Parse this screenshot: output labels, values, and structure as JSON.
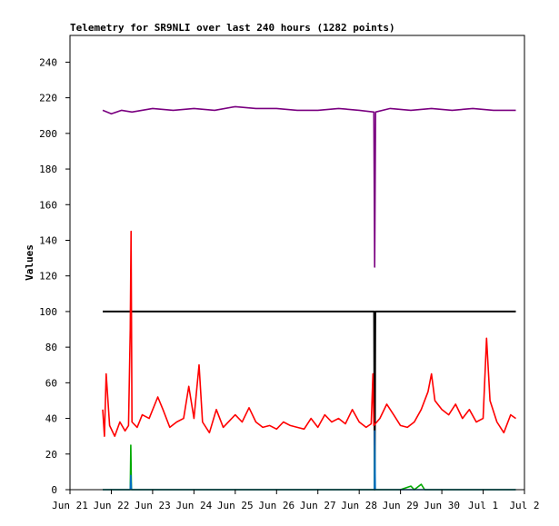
{
  "chart_data": {
    "type": "line",
    "title": "Telemetry for SR9NLI over last 240 hours (1282 points)",
    "xlabel": "",
    "ylabel": "Values",
    "xlim": [
      "2023-06-21",
      "2023-07-02"
    ],
    "ylim": [
      0,
      255
    ],
    "y_ticks": [
      0,
      20,
      40,
      60,
      80,
      100,
      120,
      140,
      160,
      180,
      200,
      220,
      240
    ],
    "x_ticks": [
      {
        "date": "2023-06-21",
        "label": "Jun 21"
      },
      {
        "date": "2023-06-22",
        "label": "Jun 22"
      },
      {
        "date": "2023-06-23",
        "label": "Jun 23"
      },
      {
        "date": "2023-06-24",
        "label": "Jun 24"
      },
      {
        "date": "2023-06-25",
        "label": "Jun 25"
      },
      {
        "date": "2023-06-26",
        "label": "Jun 26"
      },
      {
        "date": "2023-06-27",
        "label": "Jun 27"
      },
      {
        "date": "2023-06-28",
        "label": "Jun 28"
      },
      {
        "date": "2023-06-29",
        "label": "Jun 29"
      },
      {
        "date": "2023-06-30",
        "label": "Jun 30"
      },
      {
        "date": "2023-07-01",
        "label": "Jul 1"
      },
      {
        "date": "2023-07-02",
        "label": "Jul 2"
      }
    ],
    "grid": false,
    "legend": "none",
    "series": [
      {
        "color": "#7a0080",
        "points": [
          [
            "2023-06-21 19:00",
            213
          ],
          [
            "2023-06-22 00:00",
            211
          ],
          [
            "2023-06-22 06:00",
            213
          ],
          [
            "2023-06-22 12:00",
            212
          ],
          [
            "2023-06-23 00:00",
            214
          ],
          [
            "2023-06-23 12:00",
            213
          ],
          [
            "2023-06-24 00:00",
            214
          ],
          [
            "2023-06-24 12:00",
            213
          ],
          [
            "2023-06-25 00:00",
            215
          ],
          [
            "2023-06-25 12:00",
            214
          ],
          [
            "2023-06-26 00:00",
            214
          ],
          [
            "2023-06-26 12:00",
            213
          ],
          [
            "2023-06-27 00:00",
            213
          ],
          [
            "2023-06-27 12:00",
            214
          ],
          [
            "2023-06-28 00:00",
            213
          ],
          [
            "2023-06-28 08:30",
            212
          ],
          [
            "2023-06-28 09:00",
            125
          ],
          [
            "2023-06-28 09:30",
            212
          ],
          [
            "2023-06-28 18:00",
            214
          ],
          [
            "2023-06-29 06:00",
            213
          ],
          [
            "2023-06-29 18:00",
            214
          ],
          [
            "2023-06-30 06:00",
            213
          ],
          [
            "2023-06-30 18:00",
            214
          ],
          [
            "2023-07-01 06:00",
            213
          ],
          [
            "2023-07-01 18:00",
            213
          ],
          [
            "2023-07-01 19:00",
            213
          ]
        ]
      },
      {
        "color": "#000000",
        "points": [
          [
            "2023-06-21 19:00",
            100
          ],
          [
            "2023-06-28 08:40",
            100
          ],
          [
            "2023-06-28 09:00",
            0
          ],
          [
            "2023-06-28 09:20",
            100
          ],
          [
            "2023-07-01 19:00",
            100
          ]
        ]
      },
      {
        "color": "#ff0000",
        "points": [
          [
            "2023-06-21 19:00",
            45
          ],
          [
            "2023-06-21 20:00",
            30
          ],
          [
            "2023-06-21 21:00",
            65
          ],
          [
            "2023-06-21 23:00",
            36
          ],
          [
            "2023-06-22 02:00",
            30
          ],
          [
            "2023-06-22 05:00",
            38
          ],
          [
            "2023-06-22 08:00",
            33
          ],
          [
            "2023-06-22 10:00",
            36
          ],
          [
            "2023-06-22 11:00",
            90
          ],
          [
            "2023-06-22 11:30",
            145
          ],
          [
            "2023-06-22 12:00",
            38
          ],
          [
            "2023-06-22 15:00",
            35
          ],
          [
            "2023-06-22 18:00",
            42
          ],
          [
            "2023-06-22 22:00",
            40
          ],
          [
            "2023-06-23 03:00",
            52
          ],
          [
            "2023-06-23 06:00",
            45
          ],
          [
            "2023-06-23 10:00",
            35
          ],
          [
            "2023-06-23 14:00",
            38
          ],
          [
            "2023-06-23 18:00",
            40
          ],
          [
            "2023-06-23 21:00",
            58
          ],
          [
            "2023-06-24 00:00",
            40
          ],
          [
            "2023-06-24 03:00",
            70
          ],
          [
            "2023-06-24 05:00",
            38
          ],
          [
            "2023-06-24 09:00",
            32
          ],
          [
            "2023-06-24 13:00",
            45
          ],
          [
            "2023-06-24 17:00",
            35
          ],
          [
            "2023-06-25 00:00",
            42
          ],
          [
            "2023-06-25 04:00",
            38
          ],
          [
            "2023-06-25 08:00",
            46
          ],
          [
            "2023-06-25 12:00",
            38
          ],
          [
            "2023-06-25 16:00",
            35
          ],
          [
            "2023-06-25 20:00",
            36
          ],
          [
            "2023-06-26 00:00",
            34
          ],
          [
            "2023-06-26 04:00",
            38
          ],
          [
            "2023-06-26 08:00",
            36
          ],
          [
            "2023-06-26 12:00",
            35
          ],
          [
            "2023-06-26 16:00",
            34
          ],
          [
            "2023-06-26 20:00",
            40
          ],
          [
            "2023-06-27 00:00",
            35
          ],
          [
            "2023-06-27 04:00",
            42
          ],
          [
            "2023-06-27 08:00",
            38
          ],
          [
            "2023-06-27 12:00",
            40
          ],
          [
            "2023-06-27 16:00",
            37
          ],
          [
            "2023-06-27 20:00",
            45
          ],
          [
            "2023-06-28 00:00",
            38
          ],
          [
            "2023-06-28 04:00",
            35
          ],
          [
            "2023-06-28 07:00",
            37
          ],
          [
            "2023-06-28 08:00",
            65
          ],
          [
            "2023-06-28 08:30",
            36
          ],
          [
            "2023-06-28 12:00",
            40
          ],
          [
            "2023-06-28 16:00",
            48
          ],
          [
            "2023-06-28 20:00",
            42
          ],
          [
            "2023-06-29 00:00",
            36
          ],
          [
            "2023-06-29 04:00",
            35
          ],
          [
            "2023-06-29 08:00",
            38
          ],
          [
            "2023-06-29 12:00",
            45
          ],
          [
            "2023-06-29 16:00",
            55
          ],
          [
            "2023-06-29 18:00",
            65
          ],
          [
            "2023-06-29 20:00",
            50
          ],
          [
            "2023-06-30 00:00",
            45
          ],
          [
            "2023-06-30 04:00",
            42
          ],
          [
            "2023-06-30 08:00",
            48
          ],
          [
            "2023-06-30 12:00",
            40
          ],
          [
            "2023-06-30 16:00",
            45
          ],
          [
            "2023-06-30 20:00",
            38
          ],
          [
            "2023-07-01 00:00",
            40
          ],
          [
            "2023-07-01 02:00",
            85
          ],
          [
            "2023-07-01 04:00",
            50
          ],
          [
            "2023-07-01 08:00",
            38
          ],
          [
            "2023-07-01 12:00",
            32
          ],
          [
            "2023-07-01 16:00",
            42
          ],
          [
            "2023-07-01 19:00",
            40
          ]
        ]
      },
      {
        "color": "#00aa00",
        "points": [
          [
            "2023-06-21 19:00",
            0
          ],
          [
            "2023-06-22 11:00",
            0
          ],
          [
            "2023-06-22 11:20",
            25
          ],
          [
            "2023-06-22 11:40",
            0
          ],
          [
            "2023-06-28 08:50",
            0
          ],
          [
            "2023-06-28 09:00",
            25
          ],
          [
            "2023-06-28 09:10",
            0
          ],
          [
            "2023-06-29 00:00",
            0
          ],
          [
            "2023-06-29 06:00",
            2
          ],
          [
            "2023-06-29 08:00",
            0
          ],
          [
            "2023-06-29 12:00",
            3
          ],
          [
            "2023-06-29 14:00",
            0
          ],
          [
            "2023-07-01 19:00",
            0
          ]
        ]
      },
      {
        "color": "#0070c0",
        "points": [
          [
            "2023-06-21 19:00",
            0
          ],
          [
            "2023-06-22 11:00",
            0
          ],
          [
            "2023-06-22 11:20",
            8
          ],
          [
            "2023-06-22 11:40",
            0
          ],
          [
            "2023-06-28 08:50",
            0
          ],
          [
            "2023-06-28 09:00",
            33
          ],
          [
            "2023-06-28 09:20",
            0
          ],
          [
            "2023-07-01 19:00",
            0
          ]
        ]
      }
    ]
  }
}
